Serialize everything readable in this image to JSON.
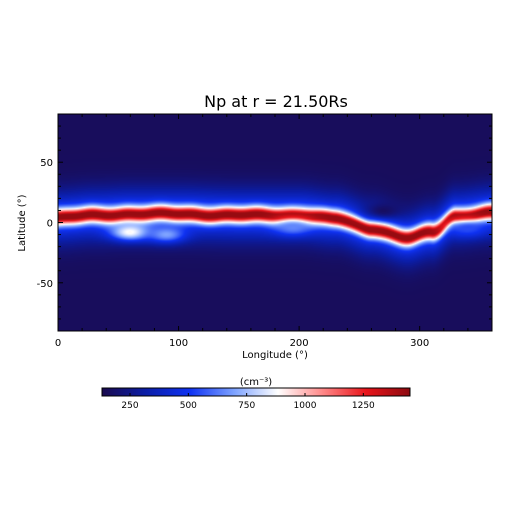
{
  "chart_data": {
    "type": "heatmap",
    "title": "Np at r = 21.50Rs",
    "xlabel": "Longitude (°)",
    "ylabel": "Latitude (°)",
    "xlim": [
      0,
      360
    ],
    "ylim": [
      -90,
      90
    ],
    "x_ticks": [
      0,
      100,
      200,
      300
    ],
    "y_ticks": [
      -50,
      0,
      50
    ],
    "colorbar": {
      "label": "(cm⁻³)",
      "range": [
        130,
        1450
      ],
      "ticks": [
        250,
        500,
        750,
        1000,
        1250
      ],
      "colormap": [
        "#1a0a4e",
        "#0b1ea8",
        "#0f32f2",
        "#7da2ff",
        "#ffffff",
        "#ff8a8a",
        "#e8141a",
        "#8c0a10"
      ]
    },
    "field": {
      "background": 160,
      "sheet_peak": 1350,
      "sheet_center_lat": [
        [
          0,
          4
        ],
        [
          30,
          6
        ],
        [
          60,
          7
        ],
        [
          100,
          7
        ],
        [
          150,
          6
        ],
        [
          200,
          6
        ],
        [
          230,
          3
        ],
        [
          260,
          -5
        ],
        [
          290,
          -13
        ],
        [
          310,
          -8
        ],
        [
          330,
          5
        ],
        [
          360,
          8
        ]
      ],
      "features": [
        {
          "lon": 270,
          "lat": 10,
          "value": 170,
          "kind": "dense-blue pocket"
        },
        {
          "lon": 340,
          "lat": -5,
          "value": 550,
          "kind": "blue pocket"
        },
        {
          "lon": 60,
          "lat": -8,
          "value": 900,
          "kind": "white blob"
        },
        {
          "lon": 90,
          "lat": -10,
          "value": 700,
          "kind": "blue eddy"
        },
        {
          "lon": 195,
          "lat": -4,
          "value": 650,
          "kind": "blue eddy"
        }
      ]
    }
  }
}
